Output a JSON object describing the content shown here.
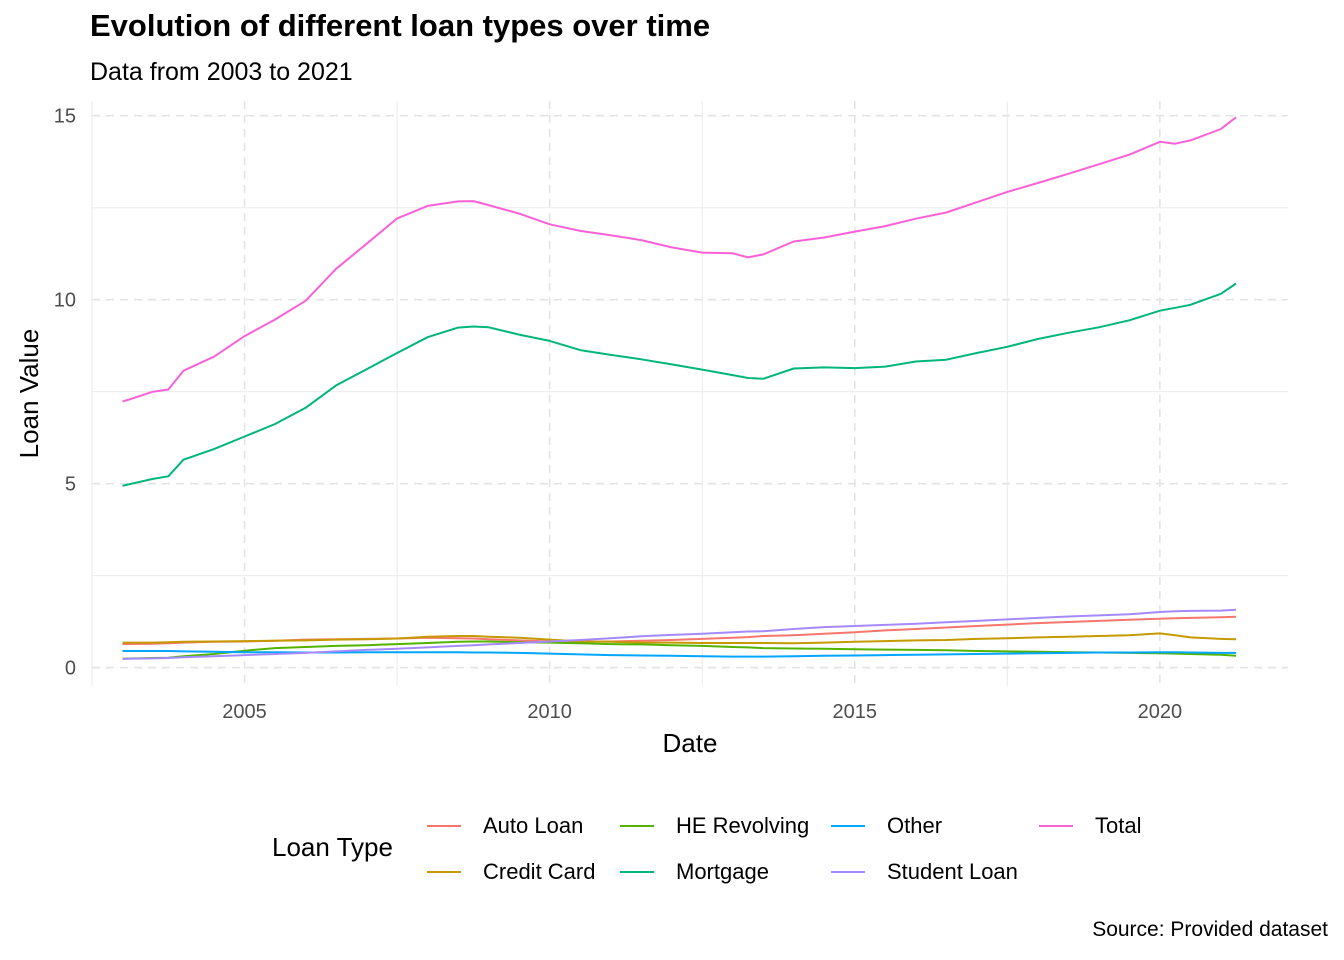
{
  "title": "Evolution of different loan types over time",
  "subtitle": "Data from 2003 to 2021",
  "caption": "Source: Provided dataset",
  "legend_title": "Loan Type",
  "chart_data": {
    "type": "line",
    "xlabel": "Date",
    "ylabel": "Loan Value",
    "xlim": [
      2002.5,
      2022.1
    ],
    "ylim": [
      -0.5,
      15.4
    ],
    "x_ticks": [
      2005,
      2010,
      2015,
      2020
    ],
    "y_ticks": [
      0,
      5,
      10,
      15
    ],
    "grid": true,
    "legend_position": "bottom",
    "x": [
      2003.0,
      2003.5,
      2003.75,
      2004.0,
      2004.5,
      2005.0,
      2005.5,
      2006.0,
      2006.5,
      2007.0,
      2007.5,
      2008.0,
      2008.5,
      2008.75,
      2009.0,
      2009.5,
      2010.0,
      2010.5,
      2011.0,
      2011.5,
      2012.0,
      2012.5,
      2013.0,
      2013.25,
      2013.5,
      2014.0,
      2014.5,
      2015.0,
      2015.5,
      2016.0,
      2016.5,
      2017.0,
      2017.5,
      2018.0,
      2018.5,
      2019.0,
      2019.5,
      2020.0,
      2020.25,
      2020.5,
      2021.0,
      2021.25
    ],
    "series": [
      {
        "name": "Auto Loan",
        "color": "#F8766D",
        "values": [
          0.64,
          0.65,
          0.66,
          0.68,
          0.7,
          0.71,
          0.73,
          0.76,
          0.77,
          0.78,
          0.79,
          0.81,
          0.8,
          0.79,
          0.77,
          0.74,
          0.71,
          0.71,
          0.71,
          0.73,
          0.75,
          0.78,
          0.81,
          0.83,
          0.86,
          0.88,
          0.92,
          0.96,
          1.01,
          1.05,
          1.09,
          1.13,
          1.17,
          1.21,
          1.24,
          1.27,
          1.3,
          1.33,
          1.34,
          1.35,
          1.37,
          1.38
        ]
      },
      {
        "name": "Credit Card",
        "color": "#C49A00",
        "values": [
          0.68,
          0.68,
          0.69,
          0.7,
          0.71,
          0.72,
          0.73,
          0.74,
          0.76,
          0.77,
          0.79,
          0.84,
          0.86,
          0.86,
          0.84,
          0.81,
          0.76,
          0.71,
          0.7,
          0.68,
          0.68,
          0.67,
          0.67,
          0.67,
          0.67,
          0.66,
          0.68,
          0.7,
          0.72,
          0.74,
          0.75,
          0.78,
          0.8,
          0.82,
          0.84,
          0.86,
          0.88,
          0.93,
          0.88,
          0.82,
          0.78,
          0.77
        ]
      },
      {
        "name": "HE Revolving",
        "color": "#53B400",
        "values": [
          0.24,
          0.26,
          0.27,
          0.31,
          0.37,
          0.46,
          0.53,
          0.56,
          0.59,
          0.61,
          0.64,
          0.67,
          0.7,
          0.71,
          0.71,
          0.69,
          0.68,
          0.66,
          0.64,
          0.63,
          0.61,
          0.59,
          0.56,
          0.55,
          0.53,
          0.52,
          0.51,
          0.5,
          0.49,
          0.48,
          0.47,
          0.45,
          0.44,
          0.43,
          0.42,
          0.41,
          0.4,
          0.39,
          0.38,
          0.37,
          0.35,
          0.32
        ]
      },
      {
        "name": "Mortgage",
        "color": "#00B67A",
        "values": [
          4.94,
          5.13,
          5.2,
          5.65,
          5.94,
          6.28,
          6.62,
          7.06,
          7.67,
          8.11,
          8.55,
          8.98,
          9.24,
          9.27,
          9.25,
          9.05,
          8.88,
          8.63,
          8.5,
          8.38,
          8.24,
          8.1,
          7.95,
          7.87,
          7.85,
          8.13,
          8.16,
          8.14,
          8.18,
          8.32,
          8.37,
          8.55,
          8.72,
          8.93,
          9.1,
          9.25,
          9.44,
          9.7,
          9.78,
          9.86,
          10.16,
          10.44
        ]
      },
      {
        "name": "Other",
        "color": "#00A6FF",
        "values": [
          0.45,
          0.45,
          0.45,
          0.44,
          0.43,
          0.42,
          0.42,
          0.41,
          0.41,
          0.42,
          0.42,
          0.42,
          0.42,
          0.41,
          0.41,
          0.4,
          0.38,
          0.36,
          0.34,
          0.33,
          0.32,
          0.31,
          0.3,
          0.3,
          0.3,
          0.31,
          0.32,
          0.33,
          0.34,
          0.35,
          0.36,
          0.37,
          0.38,
          0.39,
          0.4,
          0.41,
          0.41,
          0.42,
          0.42,
          0.41,
          0.4,
          0.4
        ]
      },
      {
        "name": "Student Loan",
        "color": "#A58AFF",
        "values": [
          0.24,
          0.25,
          0.26,
          0.28,
          0.31,
          0.34,
          0.37,
          0.4,
          0.44,
          0.48,
          0.51,
          0.55,
          0.59,
          0.61,
          0.63,
          0.67,
          0.71,
          0.75,
          0.8,
          0.85,
          0.89,
          0.92,
          0.96,
          0.98,
          0.99,
          1.05,
          1.1,
          1.13,
          1.16,
          1.19,
          1.23,
          1.27,
          1.31,
          1.35,
          1.39,
          1.42,
          1.45,
          1.51,
          1.53,
          1.54,
          1.55,
          1.57
        ]
      },
      {
        "name": "Total",
        "color": "#FB61D7",
        "values": [
          7.23,
          7.5,
          7.56,
          8.07,
          8.45,
          9.01,
          9.46,
          9.97,
          10.84,
          11.52,
          12.21,
          12.55,
          12.67,
          12.68,
          12.57,
          12.34,
          12.05,
          11.87,
          11.75,
          11.62,
          11.42,
          11.28,
          11.26,
          11.15,
          11.23,
          11.58,
          11.69,
          11.85,
          12.0,
          12.2,
          12.37,
          12.65,
          12.93,
          13.17,
          13.42,
          13.68,
          13.94,
          14.29,
          14.24,
          14.33,
          14.64,
          14.96
        ]
      }
    ]
  }
}
